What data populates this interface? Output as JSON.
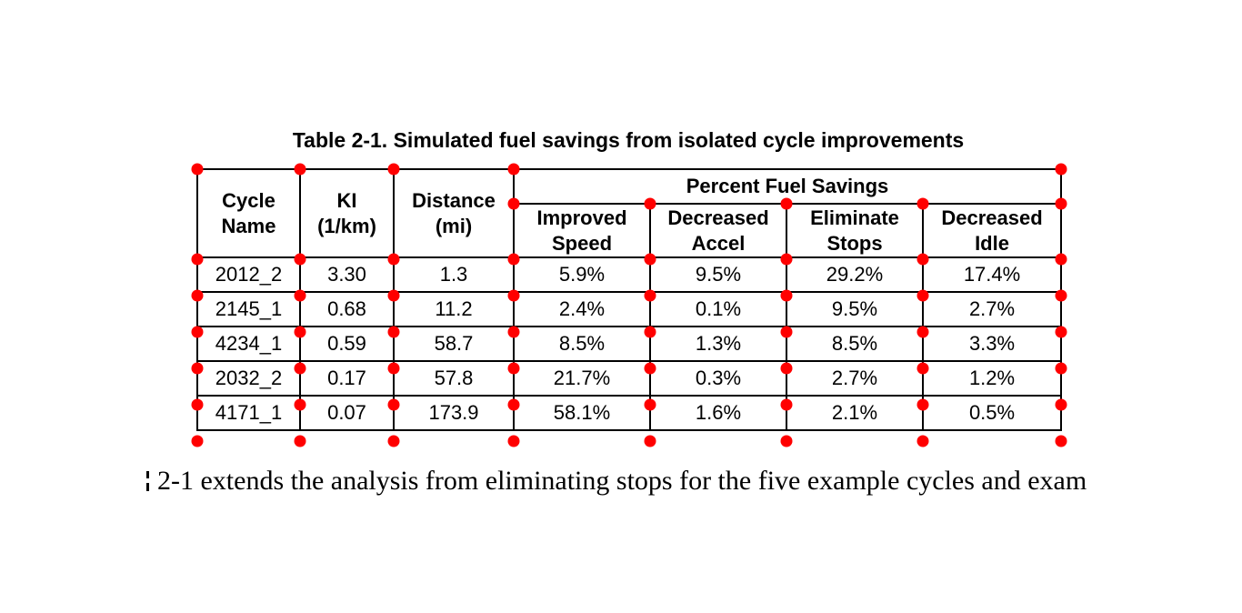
{
  "caption": "Table 2-1. Simulated fuel savings from isolated cycle improvements",
  "table": {
    "group_header": "Percent Fuel Savings",
    "columns": [
      {
        "line1": "Cycle",
        "line2": "Name"
      },
      {
        "line1": "KI",
        "line2": "(1/km)"
      },
      {
        "line1": "Distance",
        "line2": "(mi)"
      },
      {
        "line1": "Improved",
        "line2": "Speed"
      },
      {
        "line1": "Decreased",
        "line2": "Accel"
      },
      {
        "line1": "Eliminate",
        "line2": "Stops"
      },
      {
        "line1": "Decreased",
        "line2": "Idle"
      }
    ],
    "rows": [
      [
        "2012_2",
        "3.30",
        "1.3",
        "5.9%",
        "9.5%",
        "29.2%",
        "17.4%"
      ],
      [
        "2145_1",
        "0.68",
        "11.2",
        "2.4%",
        "0.1%",
        "9.5%",
        "2.7%"
      ],
      [
        "4234_1",
        "0.59",
        "58.7",
        "8.5%",
        "1.3%",
        "8.5%",
        "3.3%"
      ],
      [
        "2032_2",
        "0.17",
        "57.8",
        "21.7%",
        "0.3%",
        "2.7%",
        "1.2%"
      ],
      [
        "4171_1",
        "0.07",
        "173.9",
        "58.1%",
        "1.6%",
        "2.1%",
        "0.5%"
      ]
    ]
  },
  "annotations": {
    "anchor_color": "#ff0000"
  },
  "body_text": {
    "visible_line": "2-1 extends the analysis from eliminating stops for the five example cycles and exam"
  }
}
